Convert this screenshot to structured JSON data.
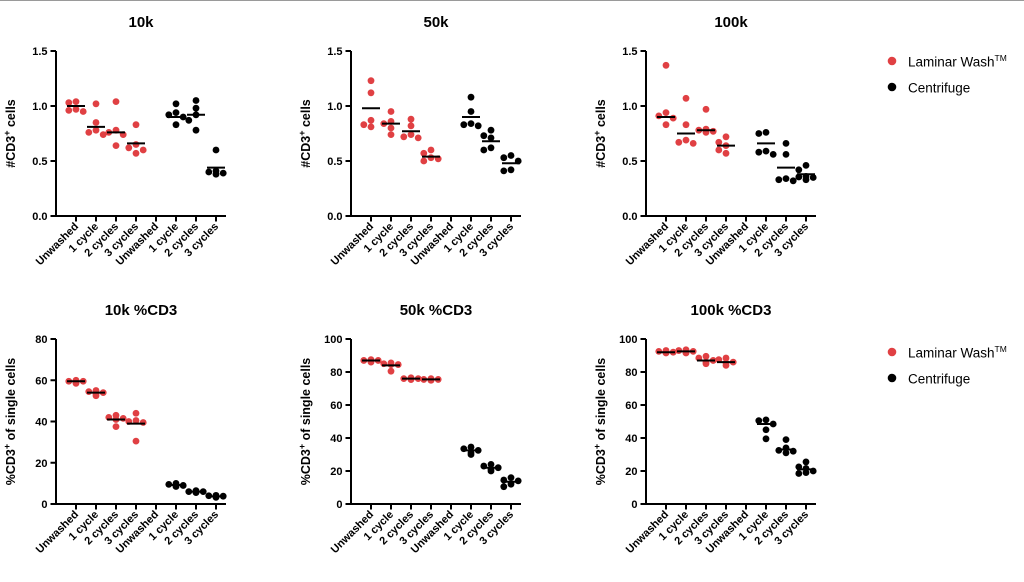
{
  "figure": {
    "background": "#ffffff",
    "top_rule_color": "#9a9a9a"
  },
  "series_colors": {
    "Laminar Wash": "#e04043",
    "Centrifuge": "#000000"
  },
  "legend": {
    "items": [
      {
        "label": "Laminar Wash",
        "sup": "TM",
        "color": "#e04043"
      },
      {
        "label": "Centrifuge",
        "sup": "",
        "color": "#000000"
      }
    ]
  },
  "chart_data": [
    {
      "id": "10k",
      "type": "scatter",
      "title": "10k",
      "ylabel": {
        "pre": "#CD3",
        "sup": "+",
        "post": " cells"
      },
      "ylim": [
        0,
        1.5
      ],
      "yticks": [
        0,
        0.5,
        1,
        1.5
      ],
      "ytick_labels": [
        "0.0",
        "0.5",
        "1.0",
        "1.5"
      ],
      "categories": [
        "Unwashed",
        "1 cycle",
        "2 cycles",
        "3 cycles",
        "Unwashed",
        "1 cycle",
        "2 cycles",
        "3 cycles"
      ],
      "groups": [
        {
          "series": "Laminar Wash",
          "cat": 0,
          "values": [
            1.04,
            1.03,
            0.97,
            0.96,
            0.95
          ],
          "mean": 1.0
        },
        {
          "series": "Laminar Wash",
          "cat": 1,
          "values": [
            1.02,
            0.85,
            0.78,
            0.76,
            0.74
          ],
          "mean": 0.81
        },
        {
          "series": "Laminar Wash",
          "cat": 2,
          "values": [
            1.04,
            0.78,
            0.76,
            0.74,
            0.64
          ],
          "mean": 0.76
        },
        {
          "series": "Laminar Wash",
          "cat": 3,
          "values": [
            0.83,
            0.65,
            0.62,
            0.6,
            0.57
          ],
          "mean": 0.66
        },
        {
          "series": "Centrifuge",
          "cat": 5,
          "values": [
            1.02,
            0.94,
            0.92,
            0.9,
            0.83
          ],
          "mean": 0.9
        },
        {
          "series": "Centrifuge",
          "cat": 6,
          "values": [
            1.05,
            0.98,
            0.92,
            0.87,
            0.78
          ],
          "mean": 0.92
        },
        {
          "series": "Centrifuge",
          "cat": 7,
          "values": [
            0.6,
            0.41,
            0.4,
            0.39,
            0.38
          ],
          "mean": 0.44
        }
      ]
    },
    {
      "id": "50k",
      "type": "scatter",
      "title": "50k",
      "ylabel": {
        "pre": "#CD3",
        "sup": "+",
        "post": " cells"
      },
      "ylim": [
        0,
        1.5
      ],
      "yticks": [
        0,
        0.5,
        1,
        1.5
      ],
      "ytick_labels": [
        "0.0",
        "0.5",
        "1.0",
        "1.5"
      ],
      "categories": [
        "Unwashed",
        "1 cycle",
        "2 cycles",
        "3 cycles",
        "Unwashed",
        "1 cycle",
        "2 cycles",
        "3 cycles"
      ],
      "groups": [
        {
          "series": "Laminar Wash",
          "cat": 0,
          "values": [
            1.23,
            1.12,
            0.87,
            0.83,
            0.81
          ],
          "mean": 0.98
        },
        {
          "series": "Laminar Wash",
          "cat": 1,
          "values": [
            0.95,
            0.86,
            0.84,
            0.8,
            0.74
          ],
          "mean": 0.84
        },
        {
          "series": "Laminar Wash",
          "cat": 2,
          "values": [
            0.88,
            0.82,
            0.74,
            0.72,
            0.71
          ],
          "mean": 0.77
        },
        {
          "series": "Laminar Wash",
          "cat": 3,
          "values": [
            0.6,
            0.57,
            0.53,
            0.52,
            0.5
          ],
          "mean": 0.54
        },
        {
          "series": "Centrifuge",
          "cat": 5,
          "values": [
            1.08,
            0.95,
            0.84,
            0.83,
            0.82
          ],
          "mean": 0.9
        },
        {
          "series": "Centrifuge",
          "cat": 6,
          "values": [
            0.78,
            0.73,
            0.71,
            0.62,
            0.6
          ],
          "mean": 0.68
        },
        {
          "series": "Centrifuge",
          "cat": 7,
          "values": [
            0.55,
            0.53,
            0.5,
            0.42,
            0.41
          ],
          "mean": 0.48
        }
      ]
    },
    {
      "id": "100k",
      "type": "scatter",
      "title": "100k",
      "ylabel": {
        "pre": "#CD3",
        "sup": "+",
        "post": " cells"
      },
      "ylim": [
        0,
        1.5
      ],
      "yticks": [
        0,
        0.5,
        1,
        1.5
      ],
      "ytick_labels": [
        "0.0",
        "0.5",
        "1.0",
        "1.5"
      ],
      "categories": [
        "Unwashed",
        "1 cycle",
        "2 cycles",
        "3 cycles",
        "Unwashed",
        "1 cycle",
        "2 cycles",
        "3 cycles"
      ],
      "groups": [
        {
          "series": "Laminar Wash",
          "cat": 0,
          "values": [
            1.37,
            0.94,
            0.91,
            0.89,
            0.83
          ],
          "mean": 0.9
        },
        {
          "series": "Laminar Wash",
          "cat": 1,
          "values": [
            1.07,
            0.83,
            0.69,
            0.67,
            0.66
          ],
          "mean": 0.75
        },
        {
          "series": "Laminar Wash",
          "cat": 2,
          "values": [
            0.97,
            0.79,
            0.78,
            0.77,
            0.76
          ],
          "mean": 0.78
        },
        {
          "series": "Laminar Wash",
          "cat": 3,
          "values": [
            0.72,
            0.67,
            0.64,
            0.6,
            0.57
          ],
          "mean": 0.64
        },
        {
          "series": "Centrifuge",
          "cat": 5,
          "values": [
            0.76,
            0.75,
            0.59,
            0.58,
            0.56
          ],
          "mean": 0.66
        },
        {
          "series": "Centrifuge",
          "cat": 6,
          "values": [
            0.66,
            0.56,
            0.34,
            0.33,
            0.32
          ],
          "mean": 0.44
        },
        {
          "series": "Centrifuge",
          "cat": 7,
          "values": [
            0.46,
            0.42,
            0.36,
            0.355,
            0.35,
            0.33
          ],
          "mean": 0.38
        }
      ]
    },
    {
      "id": "10k-pct-cd3",
      "type": "scatter",
      "title": "10k %CD3",
      "ylabel": {
        "pre": "%CD3",
        "sup": "+",
        "post": " of single cells"
      },
      "ylim": [
        0,
        80
      ],
      "yticks": [
        0,
        20,
        40,
        60,
        80
      ],
      "ytick_labels": [
        "0",
        "20",
        "40",
        "60",
        "80"
      ],
      "categories": [
        "Unwashed",
        "1 cycle",
        "2 cycles",
        "3 cycles",
        "Unwashed",
        "1 cycle",
        "2 cycles",
        "3 cycles"
      ],
      "groups": [
        {
          "series": "Laminar Wash",
          "cat": 0,
          "values": [
            60,
            59.5,
            59.5,
            59,
            58.5
          ],
          "mean": 59.5
        },
        {
          "series": "Laminar Wash",
          "cat": 1,
          "values": [
            55,
            54.5,
            54,
            53.5,
            52.5
          ],
          "mean": 54
        },
        {
          "series": "Laminar Wash",
          "cat": 2,
          "values": [
            43,
            42,
            41.5,
            41,
            37.5
          ],
          "mean": 41
        },
        {
          "series": "Laminar Wash",
          "cat": 3,
          "values": [
            44,
            40.5,
            40,
            39.5,
            30.5
          ],
          "mean": 39
        },
        {
          "series": "Centrifuge",
          "cat": 5,
          "values": [
            10,
            9.5,
            9,
            9,
            8.5
          ],
          "mean": 9.2
        },
        {
          "series": "Centrifuge",
          "cat": 6,
          "values": [
            6.5,
            6,
            6,
            5.8,
            5.5
          ],
          "mean": 6
        },
        {
          "series": "Centrifuge",
          "cat": 7,
          "values": [
            4.2,
            4,
            3.8,
            3.5,
            3.2
          ],
          "mean": 3.7
        }
      ]
    },
    {
      "id": "50k-pct-cd3",
      "type": "scatter",
      "title": "50k %CD3",
      "ylabel": {
        "pre": "%CD3",
        "sup": "+",
        "post": " of single cells"
      },
      "ylim": [
        0,
        100
      ],
      "yticks": [
        0,
        20,
        40,
        60,
        80,
        100
      ],
      "ytick_labels": [
        "0",
        "20",
        "40",
        "60",
        "80",
        "100"
      ],
      "categories": [
        "Unwashed",
        "1 cycle",
        "2 cycles",
        "3 cycles",
        "Unwashed",
        "1 cycle",
        "2 cycles",
        "3 cycles"
      ],
      "groups": [
        {
          "series": "Laminar Wash",
          "cat": 0,
          "values": [
            87.5,
            87,
            87,
            86.5,
            86
          ],
          "mean": 87
        },
        {
          "series": "Laminar Wash",
          "cat": 1,
          "values": [
            85.5,
            85,
            84.5,
            84.5,
            80.5
          ],
          "mean": 84
        },
        {
          "series": "Laminar Wash",
          "cat": 2,
          "values": [
            76.5,
            76,
            76,
            75.5,
            75.5
          ],
          "mean": 76
        },
        {
          "series": "Laminar Wash",
          "cat": 3,
          "values": [
            76,
            75.5,
            75.5,
            75,
            75
          ],
          "mean": 75.5
        },
        {
          "series": "Centrifuge",
          "cat": 5,
          "values": [
            34.5,
            33.5,
            32.5,
            31,
            30
          ],
          "mean": 32.5
        },
        {
          "series": "Centrifuge",
          "cat": 6,
          "values": [
            24,
            23,
            22,
            21,
            20
          ],
          "mean": 22
        },
        {
          "series": "Centrifuge",
          "cat": 7,
          "values": [
            16,
            14.5,
            14,
            12,
            10.5
          ],
          "mean": 13.5
        }
      ]
    },
    {
      "id": "100k-pct-cd3",
      "type": "scatter",
      "title": "100k %CD3",
      "ylabel": {
        "pre": "%CD3",
        "sup": "+",
        "post": " of single cells"
      },
      "ylim": [
        0,
        100
      ],
      "yticks": [
        0,
        20,
        40,
        60,
        80,
        100
      ],
      "ytick_labels": [
        "0",
        "20",
        "40",
        "60",
        "80",
        "100"
      ],
      "categories": [
        "Unwashed",
        "1 cycle",
        "2 cycles",
        "3 cycles",
        "Unwashed",
        "1 cycle",
        "2 cycles",
        "3 cycles"
      ],
      "groups": [
        {
          "series": "Laminar Wash",
          "cat": 0,
          "values": [
            93,
            92.5,
            92,
            92,
            91.5
          ],
          "mean": 92
        },
        {
          "series": "Laminar Wash",
          "cat": 1,
          "values": [
            93.5,
            93,
            92.5,
            92,
            91.5
          ],
          "mean": 92.5
        },
        {
          "series": "Laminar Wash",
          "cat": 2,
          "values": [
            89.5,
            88.5,
            87,
            86,
            85
          ],
          "mean": 87
        },
        {
          "series": "Laminar Wash",
          "cat": 3,
          "values": [
            88.5,
            87.5,
            86,
            85.5,
            84
          ],
          "mean": 86
        },
        {
          "series": "Centrifuge",
          "cat": 5,
          "values": [
            51,
            50.5,
            48.5,
            45,
            39.5
          ],
          "mean": 48.5
        },
        {
          "series": "Centrifuge",
          "cat": 6,
          "values": [
            39,
            34,
            32.5,
            32,
            31
          ],
          "mean": 33
        },
        {
          "series": "Centrifuge",
          "cat": 7,
          "values": [
            25.5,
            22.5,
            21.5,
            20,
            19,
            18.5
          ],
          "mean": 21
        }
      ]
    }
  ]
}
